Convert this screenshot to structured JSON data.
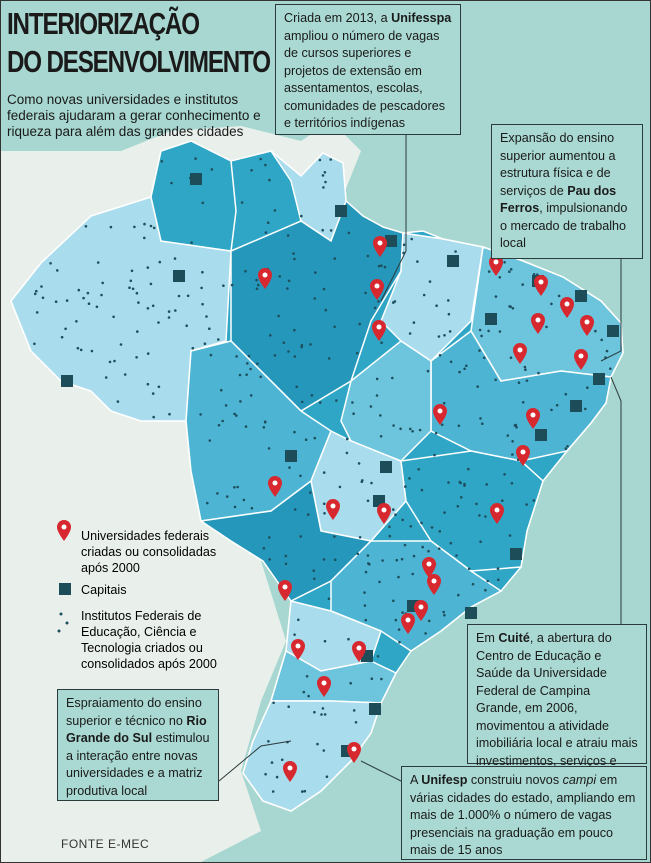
{
  "title": [
    "INTERIORIZAÇÃO",
    "DO DESENVOLVIMENTO"
  ],
  "subtitle": "Como novas universidades e institutos federais ajudaram a gerar conhecimento e riqueza para além das grandes cidades",
  "legend": [
    "Universidades federais criadas ou consolidadas após 2000",
    "Capitais",
    "Institutos Federais de Educação, Ciência e Tecnologia criados ou consolidados após 2000"
  ],
  "annotations": [
    {
      "parts": [
        {
          "text": "Criada em 2013, a "
        },
        {
          "text": "Unifesspa",
          "bold": true
        },
        {
          "text": " ampliou o número de vagas de cursos superiores e projetos de extensão em assentamentos, escolas, comunidades de pescadores e territórios indígenas"
        }
      ]
    },
    {
      "parts": [
        {
          "text": "Expansão do ensino superior aumentou a estrutura física e de serviços de "
        },
        {
          "text": "Pau dos Ferros",
          "bold": true
        },
        {
          "text": ", impulsionando o mercado de trabalho local"
        }
      ]
    },
    {
      "parts": [
        {
          "text": "Espraiamento do ensino superior e técnico no "
        },
        {
          "text": "Rio Grande do Sul",
          "bold": true
        },
        {
          "text": " estimulou a interação entre novas universidades e a matriz produtiva local"
        }
      ]
    },
    {
      "parts": [
        {
          "text": "Em "
        },
        {
          "text": "Cuité",
          "bold": true
        },
        {
          "text": ", a abertura do Centro de Educação e Saúde da Universidade Federal de Campina Grande, em 2006, movimentou a atividade imobiliária local e atraiu mais investimentos, serviços e pessoas"
        }
      ]
    },
    {
      "parts": [
        {
          "text": "A "
        },
        {
          "text": "Unifesp",
          "bold": true
        },
        {
          "text": " construiu novos "
        },
        {
          "text": "campi",
          "italic": true
        },
        {
          "text": " em várias cidades do estado, ampliando em mais de 1.000% o número de vagas presenciais na graduação em pouco mais de 15 anos"
        }
      ]
    }
  ],
  "source": "FONTE E-MEC"
}
